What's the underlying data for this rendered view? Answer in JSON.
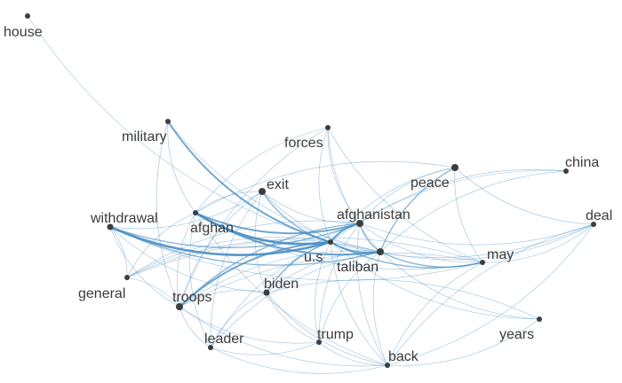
{
  "graph": {
    "nodes": [
      {
        "id": "house",
        "label": "house"
      },
      {
        "id": "military",
        "label": "military"
      },
      {
        "id": "forces",
        "label": "forces"
      },
      {
        "id": "china",
        "label": "china"
      },
      {
        "id": "peace",
        "label": "peace"
      },
      {
        "id": "exit",
        "label": "exit"
      },
      {
        "id": "withdrawal",
        "label": "withdrawal"
      },
      {
        "id": "afghan",
        "label": "afghan"
      },
      {
        "id": "afghanistan",
        "label": "afghanistan"
      },
      {
        "id": "deal",
        "label": "deal"
      },
      {
        "id": "us",
        "label": "u.s"
      },
      {
        "id": "taliban",
        "label": "taliban"
      },
      {
        "id": "may",
        "label": "may"
      },
      {
        "id": "general",
        "label": "general"
      },
      {
        "id": "biden",
        "label": "biden"
      },
      {
        "id": "troops",
        "label": "troops"
      },
      {
        "id": "years",
        "label": "years"
      },
      {
        "id": "leader",
        "label": "leader"
      },
      {
        "id": "trump",
        "label": "trump"
      },
      {
        "id": "back",
        "label": "back"
      }
    ],
    "edges": [
      {
        "source": "house",
        "target": "us",
        "weight": 1
      },
      {
        "source": "military",
        "target": "us",
        "weight": 3
      },
      {
        "source": "military",
        "target": "taliban",
        "weight": 1
      },
      {
        "source": "military",
        "target": "afghan",
        "weight": 1
      },
      {
        "source": "military",
        "target": "troops",
        "weight": 1
      },
      {
        "source": "forces",
        "target": "us",
        "weight": 1
      },
      {
        "source": "forces",
        "target": "afghan",
        "weight": 1
      },
      {
        "source": "forces",
        "target": "taliban",
        "weight": 1
      },
      {
        "source": "forces",
        "target": "afghanistan",
        "weight": 1
      },
      {
        "source": "forces",
        "target": "may",
        "weight": 1
      },
      {
        "source": "forces",
        "target": "troops",
        "weight": 1
      },
      {
        "source": "china",
        "target": "us",
        "weight": 1
      },
      {
        "source": "china",
        "target": "taliban",
        "weight": 1
      },
      {
        "source": "china",
        "target": "afghanistan",
        "weight": 1
      },
      {
        "source": "peace",
        "target": "taliban",
        "weight": 2
      },
      {
        "source": "peace",
        "target": "us",
        "weight": 1
      },
      {
        "source": "peace",
        "target": "afghan",
        "weight": 1
      },
      {
        "source": "peace",
        "target": "deal",
        "weight": 1
      },
      {
        "source": "peace",
        "target": "may",
        "weight": 1
      },
      {
        "source": "peace",
        "target": "afghanistan",
        "weight": 1
      },
      {
        "source": "exit",
        "target": "us",
        "weight": 2
      },
      {
        "source": "exit",
        "target": "afghan",
        "weight": 1
      },
      {
        "source": "exit",
        "target": "afghanistan",
        "weight": 1
      },
      {
        "source": "exit",
        "target": "troops",
        "weight": 1
      },
      {
        "source": "exit",
        "target": "biden",
        "weight": 1
      },
      {
        "source": "exit",
        "target": "leader",
        "weight": 1
      },
      {
        "source": "exit",
        "target": "taliban",
        "weight": 1
      },
      {
        "source": "withdrawal",
        "target": "us",
        "weight": 4
      },
      {
        "source": "withdrawal",
        "target": "afghanistan",
        "weight": 2
      },
      {
        "source": "withdrawal",
        "target": "taliban",
        "weight": 2
      },
      {
        "source": "withdrawal",
        "target": "troops",
        "weight": 1
      },
      {
        "source": "withdrawal",
        "target": "exit",
        "weight": 1
      },
      {
        "source": "withdrawal",
        "target": "biden",
        "weight": 1
      },
      {
        "source": "withdrawal",
        "target": "may",
        "weight": 1
      },
      {
        "source": "afghan",
        "target": "us",
        "weight": 4
      },
      {
        "source": "afghan",
        "target": "afghanistan",
        "weight": 3
      },
      {
        "source": "afghan",
        "target": "taliban",
        "weight": 3
      },
      {
        "source": "afghan",
        "target": "troops",
        "weight": 1
      },
      {
        "source": "afghan",
        "target": "leader",
        "weight": 1
      },
      {
        "source": "afghan",
        "target": "general",
        "weight": 1
      },
      {
        "source": "afghan",
        "target": "may",
        "weight": 1
      },
      {
        "source": "afghan",
        "target": "back",
        "weight": 1
      },
      {
        "source": "afghanistan",
        "target": "us",
        "weight": 3
      },
      {
        "source": "afghanistan",
        "target": "taliban",
        "weight": 2
      },
      {
        "source": "afghanistan",
        "target": "troops",
        "weight": 2
      },
      {
        "source": "afghanistan",
        "target": "general",
        "weight": 1
      },
      {
        "source": "afghanistan",
        "target": "deal",
        "weight": 1
      },
      {
        "source": "afghanistan",
        "target": "biden",
        "weight": 1
      },
      {
        "source": "afghanistan",
        "target": "trump",
        "weight": 1
      },
      {
        "source": "afghanistan",
        "target": "back",
        "weight": 1
      },
      {
        "source": "afghanistan",
        "target": "may",
        "weight": 1
      },
      {
        "source": "us",
        "target": "taliban",
        "weight": 3
      },
      {
        "source": "us",
        "target": "troops",
        "weight": 3
      },
      {
        "source": "us",
        "target": "may",
        "weight": 2
      },
      {
        "source": "us",
        "target": "deal",
        "weight": 1
      },
      {
        "source": "us",
        "target": "general",
        "weight": 1
      },
      {
        "source": "us",
        "target": "biden",
        "weight": 2
      },
      {
        "source": "us",
        "target": "years",
        "weight": 1
      },
      {
        "source": "us",
        "target": "leader",
        "weight": 1
      },
      {
        "source": "us",
        "target": "trump",
        "weight": 1
      },
      {
        "source": "us",
        "target": "back",
        "weight": 1
      },
      {
        "source": "taliban",
        "target": "may",
        "weight": 2
      },
      {
        "source": "taliban",
        "target": "deal",
        "weight": 1
      },
      {
        "source": "taliban",
        "target": "general",
        "weight": 1
      },
      {
        "source": "taliban",
        "target": "troops",
        "weight": 1
      },
      {
        "source": "taliban",
        "target": "biden",
        "weight": 1
      },
      {
        "source": "taliban",
        "target": "years",
        "weight": 1
      },
      {
        "source": "taliban",
        "target": "trump",
        "weight": 1
      },
      {
        "source": "taliban",
        "target": "back",
        "weight": 1
      },
      {
        "source": "taliban",
        "target": "leader",
        "weight": 1
      },
      {
        "source": "may",
        "target": "deal",
        "weight": 1
      },
      {
        "source": "may",
        "target": "general",
        "weight": 1
      },
      {
        "source": "may",
        "target": "troops",
        "weight": 1
      },
      {
        "source": "may",
        "target": "back",
        "weight": 1
      },
      {
        "source": "biden",
        "target": "troops",
        "weight": 1
      },
      {
        "source": "biden",
        "target": "trump",
        "weight": 1
      },
      {
        "source": "biden",
        "target": "back",
        "weight": 1
      },
      {
        "source": "biden",
        "target": "leader",
        "weight": 1
      },
      {
        "source": "troops",
        "target": "general",
        "weight": 1
      },
      {
        "source": "troops",
        "target": "trump",
        "weight": 1
      },
      {
        "source": "troops",
        "target": "back",
        "weight": 1
      },
      {
        "source": "troops",
        "target": "leader",
        "weight": 1
      },
      {
        "source": "general",
        "target": "withdrawal",
        "weight": 1
      },
      {
        "source": "leader",
        "target": "trump",
        "weight": 1
      },
      {
        "source": "leader",
        "target": "back",
        "weight": 1
      },
      {
        "source": "trump",
        "target": "back",
        "weight": 1
      },
      {
        "source": "back",
        "target": "years",
        "weight": 1
      },
      {
        "source": "back",
        "target": "deal",
        "weight": 1
      },
      {
        "source": "years",
        "target": "biden",
        "weight": 1
      },
      {
        "source": "deal",
        "target": "back",
        "weight": 1
      }
    ]
  },
  "colors": {
    "edge": "#4a8fc4",
    "node": "#3d3d3d",
    "label": "#3b3b3b",
    "background": "#ffffff"
  }
}
